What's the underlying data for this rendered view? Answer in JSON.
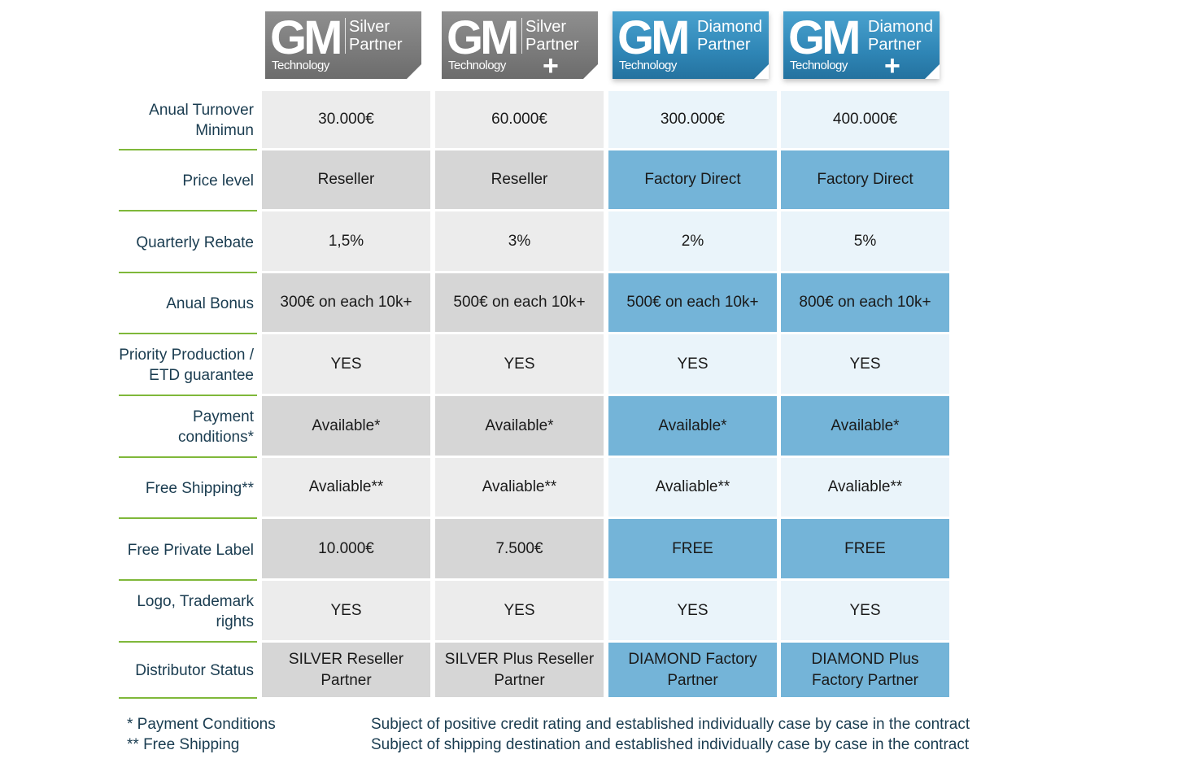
{
  "colors": {
    "silver_badge": "#7a7a7a",
    "diamond_badge": "#2f86b6",
    "silver_light_cell": "#ececec",
    "silver_dark_cell": "#d6d6d6",
    "diamond_light_cell": "#eaf4fa",
    "diamond_dark_cell": "#74b4d8",
    "label_text": "#1a3c50",
    "divider_green": "#7fb83a"
  },
  "tiers": [
    {
      "brand": "GM",
      "sub": "Technology",
      "tier_line1": "Silver",
      "tier_line2": "Partner",
      "plus": "",
      "style": "silver"
    },
    {
      "brand": "GM",
      "sub": "Technology",
      "tier_line1": "Silver",
      "tier_line2": "Partner",
      "plus": "+",
      "style": "silver"
    },
    {
      "brand": "GM",
      "sub": "Technology",
      "tier_line1": "Diamond",
      "tier_line2": "Partner",
      "plus": "",
      "style": "diamond"
    },
    {
      "brand": "GM",
      "sub": "Technology",
      "tier_line1": "Diamond",
      "tier_line2": "Partner",
      "plus": "+",
      "style": "diamond"
    }
  ],
  "rows": [
    {
      "label": "Anual Turnover Minimun",
      "values": [
        "30.000€",
        "60.000€",
        "300.000€",
        "400.000€"
      ]
    },
    {
      "label": "Price level",
      "values": [
        "Reseller",
        "Reseller",
        "Factory Direct",
        "Factory Direct"
      ]
    },
    {
      "label": "Quarterly Rebate",
      "values": [
        "1,5%",
        "3%",
        "2%",
        "5%"
      ]
    },
    {
      "label": "Anual Bonus",
      "values": [
        "300€ on each 10k+",
        "500€ on each 10k+",
        "500€ on each 10k+",
        "800€ on each 10k+"
      ]
    },
    {
      "label": "Priority Production / ETD guarantee",
      "values": [
        "YES",
        "YES",
        "YES",
        "YES"
      ]
    },
    {
      "label": "Payment conditions*",
      "values": [
        "Available*",
        "Available*",
        "Available*",
        "Available*"
      ]
    },
    {
      "label": "Free Shipping**",
      "values": [
        "Avaliable**",
        "Avaliable**",
        "Avaliable**",
        "Avaliable**"
      ]
    },
    {
      "label": "Free Private Label",
      "values": [
        "10.000€",
        "7.500€",
        "FREE",
        "FREE"
      ]
    },
    {
      "label": "Logo, Trademark rights",
      "values": [
        "YES",
        "YES",
        "YES",
        "YES"
      ]
    },
    {
      "label": "Distributor Status",
      "values": [
        "SILVER Reseller Partner",
        "SILVER Plus Reseller Partner",
        "DIAMOND Factory Partner",
        "DIAMOND Plus Factory Partner"
      ]
    }
  ],
  "footnotes": [
    {
      "key": "* Payment Conditions",
      "text": "Subject of positive credit rating and established individually case by case in the contract"
    },
    {
      "key": "** Free Shipping",
      "text": "Subject of shipping destination and established individually case by case in the contract"
    }
  ]
}
